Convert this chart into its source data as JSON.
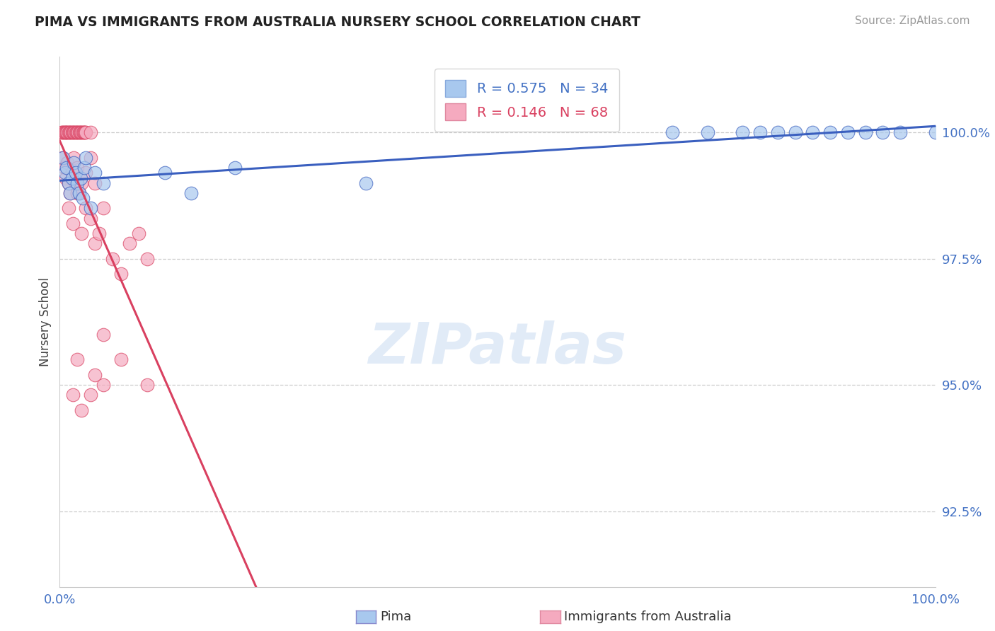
{
  "title": "PIMA VS IMMIGRANTS FROM AUSTRALIA NURSERY SCHOOL CORRELATION CHART",
  "source_text": "Source: ZipAtlas.com",
  "ylabel": "Nursery School",
  "yticks": [
    92.5,
    95.0,
    97.5,
    100.0
  ],
  "ytick_labels": [
    "92.5%",
    "95.0%",
    "97.5%",
    "100.0%"
  ],
  "xlim": [
    0.0,
    100.0
  ],
  "ylim": [
    91.0,
    101.5
  ],
  "legend_blue_label": "Pima",
  "legend_pink_label": "Immigrants from Australia",
  "legend_R_blue": "R = 0.575",
  "legend_N_blue": "N = 34",
  "legend_R_pink": "R = 0.146",
  "legend_N_pink": "N = 68",
  "blue_color": "#A8C8EE",
  "pink_color": "#F5AABF",
  "blue_line_color": "#3A5FBF",
  "pink_line_color": "#D94060",
  "watermark": "ZIPatlas",
  "pima_x": [
    0.4,
    0.6,
    0.8,
    1.0,
    1.2,
    1.4,
    1.6,
    1.8,
    2.0,
    2.2,
    2.4,
    2.6,
    2.8,
    3.0,
    3.5,
    4.0,
    5.0,
    12.0,
    15.0,
    20.0,
    35.0,
    70.0,
    74.0,
    78.0,
    80.0,
    82.0,
    84.0,
    86.0,
    88.0,
    90.0,
    92.0,
    94.0,
    96.0,
    100.0
  ],
  "pima_y": [
    99.5,
    99.2,
    99.3,
    99.0,
    98.8,
    99.1,
    99.4,
    99.2,
    99.0,
    98.8,
    99.1,
    98.7,
    99.3,
    99.5,
    98.5,
    99.2,
    99.0,
    99.2,
    98.8,
    99.3,
    99.0,
    100.0,
    100.0,
    100.0,
    100.0,
    100.0,
    100.0,
    100.0,
    100.0,
    100.0,
    100.0,
    100.0,
    100.0,
    100.0
  ],
  "aus_x": [
    0.2,
    0.3,
    0.4,
    0.5,
    0.6,
    0.7,
    0.8,
    0.9,
    1.0,
    1.1,
    1.2,
    1.3,
    1.4,
    1.5,
    1.6,
    1.7,
    1.8,
    1.9,
    2.0,
    2.1,
    2.2,
    2.3,
    2.4,
    2.5,
    2.6,
    2.7,
    2.8,
    2.9,
    3.0,
    3.5,
    0.3,
    0.5,
    0.7,
    0.9,
    1.0,
    1.2,
    1.4,
    1.6,
    1.8,
    2.0,
    2.2,
    2.5,
    3.0,
    3.5,
    4.0,
    1.0,
    1.5,
    2.0,
    2.5,
    3.0,
    3.5,
    4.0,
    4.5,
    5.0,
    6.0,
    7.0,
    8.0,
    9.0,
    10.0,
    5.0,
    7.0,
    10.0,
    2.0,
    4.0,
    1.5,
    2.5,
    3.5,
    5.0
  ],
  "aus_y": [
    100.0,
    100.0,
    100.0,
    100.0,
    100.0,
    100.0,
    100.0,
    100.0,
    100.0,
    100.0,
    100.0,
    100.0,
    100.0,
    100.0,
    100.0,
    100.0,
    100.0,
    100.0,
    100.0,
    100.0,
    100.0,
    100.0,
    100.0,
    100.0,
    100.0,
    100.0,
    100.0,
    100.0,
    100.0,
    100.0,
    99.5,
    99.3,
    99.1,
    99.4,
    99.0,
    98.8,
    99.2,
    99.5,
    99.0,
    99.3,
    98.8,
    99.0,
    99.2,
    99.5,
    99.0,
    98.5,
    98.2,
    98.8,
    98.0,
    98.5,
    98.3,
    97.8,
    98.0,
    98.5,
    97.5,
    97.2,
    97.8,
    98.0,
    97.5,
    96.0,
    95.5,
    95.0,
    95.5,
    95.2,
    94.8,
    94.5,
    94.8,
    95.0
  ]
}
